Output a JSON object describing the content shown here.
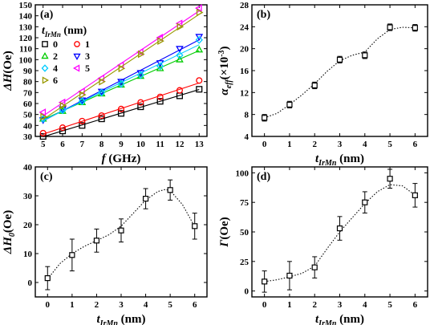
{
  "colors": {
    "axis": "#000000",
    "fit": "#000000"
  },
  "chart_data": [
    {
      "id": "a",
      "type": "line",
      "panel_label": "(a)",
      "xlabel": {
        "main": "f",
        "unit": "(GHz)"
      },
      "ylabel": {
        "main": "ΔH",
        "unit": "(Oe)"
      },
      "xlim": [
        4.6,
        13.4
      ],
      "ylim": [
        30,
        150
      ],
      "xticks": [
        5,
        6,
        7,
        8,
        9,
        10,
        11,
        12,
        13
      ],
      "yticks": [
        30,
        40,
        50,
        60,
        70,
        80,
        90,
        100,
        110,
        120,
        130,
        140,
        150
      ],
      "legend": {
        "title_main": "t",
        "title_sub": "IrMn",
        "title_unit": "(nm)",
        "placement": "top-left"
      },
      "x": [
        5,
        6,
        7,
        8,
        9,
        10,
        11,
        12,
        13
      ],
      "series": [
        {
          "name": "0",
          "color": "#000000",
          "marker": "square",
          "values": [
            30,
            35,
            40,
            46,
            51,
            57,
            62,
            67,
            73
          ]
        },
        {
          "name": "1",
          "color": "#ff0000",
          "marker": "circle",
          "values": [
            33,
            38,
            44,
            49,
            55,
            61,
            66,
            72,
            81
          ]
        },
        {
          "name": "2",
          "color": "#00cc00",
          "marker": "triangle-up",
          "values": [
            46,
            53,
            61,
            69,
            77,
            85,
            92,
            100,
            109
          ]
        },
        {
          "name": "3",
          "color": "#0000ff",
          "marker": "triangle-down",
          "values": [
            45,
            55,
            63,
            71,
            80,
            88,
            97,
            110,
            121
          ]
        },
        {
          "name": "4",
          "color": "#00ccff",
          "marker": "diamond",
          "values": [
            46,
            54,
            62,
            70,
            78,
            86,
            94,
            104,
            118
          ]
        },
        {
          "name": "5",
          "color": "#ff00ff",
          "marker": "triangle-left",
          "values": [
            52,
            61,
            71,
            83,
            95,
            107,
            120,
            133,
            147
          ]
        },
        {
          "name": "6",
          "color": "#999900",
          "marker": "triangle-right",
          "values": [
            48,
            58,
            68,
            80,
            92,
            105,
            117,
            130,
            143
          ]
        }
      ]
    },
    {
      "id": "b",
      "type": "scatter",
      "panel_label": "(b)",
      "xlabel": {
        "main": "t",
        "sub": "IrMn",
        "unit": "(nm)"
      },
      "ylabel": {
        "main": "α",
        "sub": "eff",
        "unit": "(×10",
        "sup": "-3",
        "close": ")"
      },
      "xlim": [
        -0.5,
        6.5
      ],
      "ylim": [
        4,
        28
      ],
      "xticks": [
        0,
        1,
        2,
        3,
        4,
        5,
        6
      ],
      "yticks": [
        4,
        8,
        12,
        16,
        20,
        24,
        28
      ],
      "points": {
        "x": [
          0,
          1,
          2,
          3,
          4,
          5,
          6
        ],
        "y": [
          7.4,
          9.8,
          13.3,
          18.0,
          18.8,
          23.9,
          23.8
        ],
        "err": [
          0.6,
          0.6,
          0.6,
          0.6,
          0.6,
          0.6,
          0.6
        ]
      },
      "fit": {
        "x": [
          -0.1,
          0,
          0.5,
          1,
          1.5,
          2,
          2.5,
          3,
          3.5,
          4,
          4.5,
          5,
          5.5,
          6,
          6.1
        ],
        "y": [
          7.2,
          7.4,
          8.2,
          9.8,
          11.6,
          13.6,
          15.9,
          17.8,
          18.8,
          19.4,
          21.8,
          23.5,
          23.9,
          23.8,
          23.8
        ]
      }
    },
    {
      "id": "c",
      "type": "scatter",
      "panel_label": "(c)",
      "xlabel": {
        "main": "t",
        "sub": "IrMn",
        "unit": "(nm)"
      },
      "ylabel": {
        "main": "ΔH",
        "sub": "0",
        "unit": "(Oe)"
      },
      "xlim": [
        -0.5,
        6.5
      ],
      "ylim": [
        -5,
        40
      ],
      "xticks": [
        0,
        1,
        2,
        3,
        4,
        5,
        6
      ],
      "yticks": [
        0,
        10,
        20,
        30,
        40
      ],
      "points": {
        "x": [
          0,
          1,
          2,
          3,
          4,
          5,
          6
        ],
        "y": [
          1.5,
          9.5,
          14.5,
          18.0,
          29.0,
          32.0,
          19.5
        ],
        "err": [
          4,
          5.5,
          4,
          4,
          3.5,
          3.5,
          4.5
        ]
      },
      "fit": {
        "x": [
          0,
          0.5,
          1,
          1.5,
          2,
          2.5,
          3,
          3.5,
          4,
          4.5,
          4.8,
          5,
          5.5,
          6
        ],
        "y": [
          1.2,
          6.5,
          10.0,
          12.5,
          14.5,
          16.5,
          19.5,
          24.0,
          28.5,
          31.5,
          32.2,
          31.8,
          27.0,
          19.3
        ]
      }
    },
    {
      "id": "d",
      "type": "scatter",
      "panel_label": "(d)",
      "xlabel": {
        "main": "t",
        "sub": "IrMn",
        "unit": "(nm)"
      },
      "ylabel": {
        "main": "Γ",
        "unit": "(Oe)"
      },
      "xlim": [
        -0.5,
        6.5
      ],
      "ylim": [
        -5,
        105
      ],
      "xticks": [
        0,
        1,
        2,
        3,
        4,
        5,
        6
      ],
      "yticks": [
        0,
        25,
        50,
        75,
        100
      ],
      "points": {
        "x": [
          0,
          1,
          2,
          3,
          4,
          5,
          6
        ],
        "y": [
          8,
          13,
          20,
          53,
          75,
          95,
          81
        ],
        "err": [
          9,
          12,
          9,
          10,
          9,
          8,
          10
        ]
      },
      "fit": {
        "x": [
          0,
          0.5,
          1,
          1.5,
          2,
          2.5,
          3,
          3.5,
          4,
          4.5,
          5,
          5.5,
          6
        ],
        "y": [
          8,
          9.5,
          12,
          15,
          21,
          36,
          50,
          62,
          74,
          84,
          90,
          89,
          81
        ]
      }
    }
  ]
}
